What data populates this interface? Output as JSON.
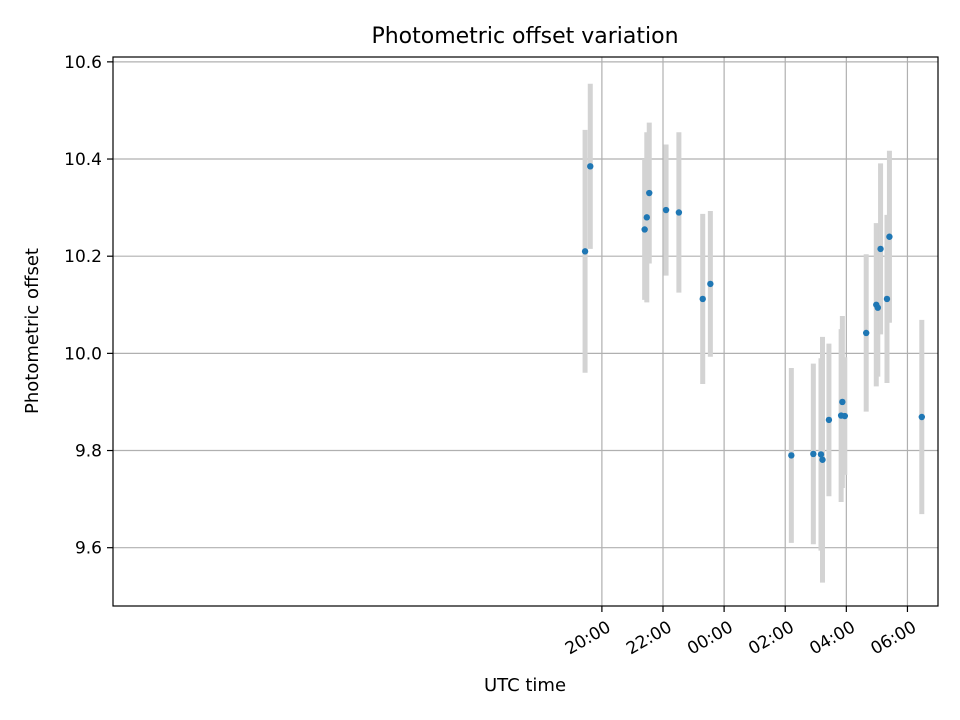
{
  "chart_data": {
    "type": "scatter",
    "title": "Photometric offset variation",
    "xlabel": "UTC time",
    "ylabel": "Photometric offset",
    "x_unit": "hours relative to 00:00 UTC",
    "xlim": [
      -20.0,
      7.0
    ],
    "ylim": [
      9.48,
      10.61
    ],
    "grid": true,
    "x_ticks": [
      {
        "value": -4,
        "label": "20:00"
      },
      {
        "value": -2,
        "label": "22:00"
      },
      {
        "value": 0,
        "label": "00:00"
      },
      {
        "value": 2,
        "label": "02:00"
      },
      {
        "value": 4,
        "label": "04:00"
      },
      {
        "value": 6,
        "label": "06:00"
      }
    ],
    "y_ticks": [
      {
        "value": 9.6,
        "label": "9.6"
      },
      {
        "value": 9.8,
        "label": "9.8"
      },
      {
        "value": 10.0,
        "label": "10.0"
      },
      {
        "value": 10.2,
        "label": "10.2"
      },
      {
        "value": 10.4,
        "label": "10.4"
      },
      {
        "value": 10.6,
        "label": "10.6"
      }
    ],
    "colors": {
      "marker": "#1f77b4",
      "errorbar": "#d3d3d3",
      "grid": "#b0b0b0"
    },
    "points": [
      {
        "x": -4.55,
        "y": 10.21,
        "err": 0.25
      },
      {
        "x": -4.38,
        "y": 10.385,
        "err": 0.17
      },
      {
        "x": -2.6,
        "y": 10.255,
        "err": 0.145
      },
      {
        "x": -2.53,
        "y": 10.28,
        "err": 0.175
      },
      {
        "x": -2.45,
        "y": 10.33,
        "err": 0.145
      },
      {
        "x": -1.9,
        "y": 10.295,
        "err": 0.135
      },
      {
        "x": -1.48,
        "y": 10.29,
        "err": 0.165
      },
      {
        "x": -0.7,
        "y": 10.112,
        "err": 0.175
      },
      {
        "x": -0.45,
        "y": 10.143,
        "err": 0.15
      },
      {
        "x": 2.2,
        "y": 9.79,
        "err": 0.18
      },
      {
        "x": 2.92,
        "y": 9.793,
        "err": 0.186
      },
      {
        "x": 3.17,
        "y": 9.792,
        "err": 0.198
      },
      {
        "x": 3.22,
        "y": 9.781,
        "err": 0.253
      },
      {
        "x": 3.43,
        "y": 9.863,
        "err": 0.157
      },
      {
        "x": 3.83,
        "y": 9.872,
        "err": 0.178
      },
      {
        "x": 3.87,
        "y": 9.9,
        "err": 0.177
      },
      {
        "x": 3.95,
        "y": 9.871,
        "err": 0.121
      },
      {
        "x": 4.65,
        "y": 10.042,
        "err": 0.162
      },
      {
        "x": 4.98,
        "y": 10.1,
        "err": 0.168
      },
      {
        "x": 5.03,
        "y": 10.094,
        "err": 0.142
      },
      {
        "x": 5.12,
        "y": 10.215,
        "err": 0.176
      },
      {
        "x": 5.33,
        "y": 10.112,
        "err": 0.173
      },
      {
        "x": 5.41,
        "y": 10.24,
        "err": 0.177
      },
      {
        "x": 6.47,
        "y": 9.869,
        "err": 0.2
      }
    ]
  }
}
